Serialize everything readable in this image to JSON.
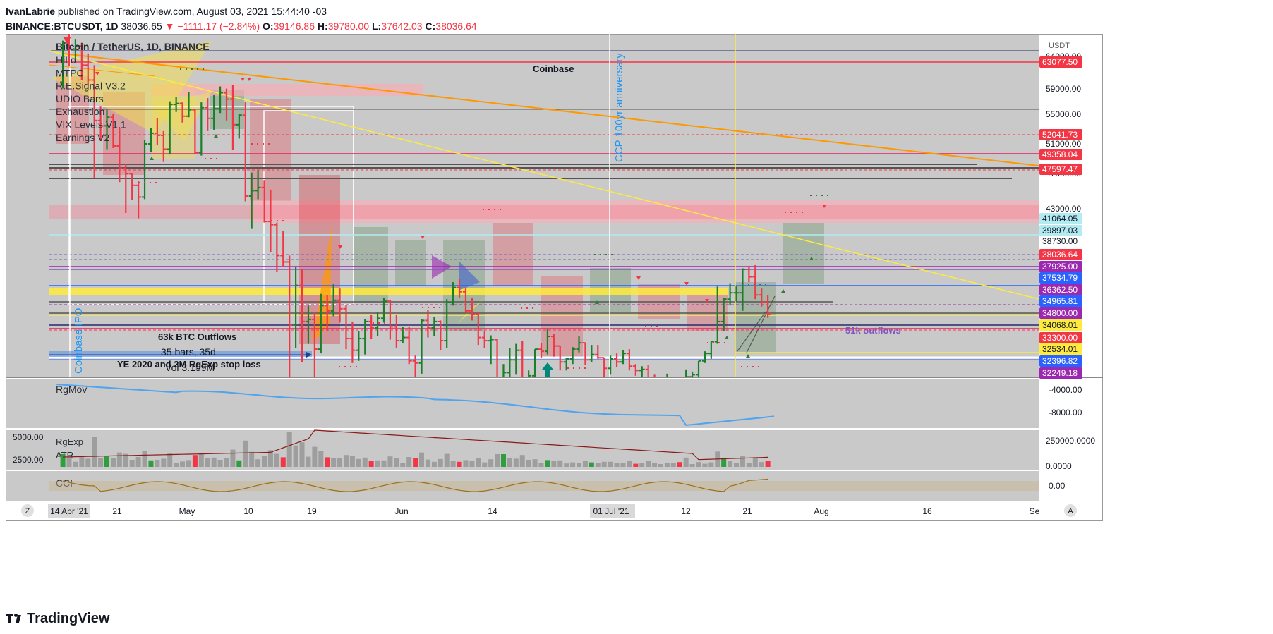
{
  "header": {
    "author": "IvanLabrie",
    "published_text": "published on TradingView.com, August 03, 2021 15:44:40 -03",
    "symbol": "BINANCE:BTCUSDT, 1D",
    "price": "38036.65",
    "change": "−1111.17 (−2.84%)",
    "o_label": "O:",
    "o_value": "39146.86",
    "h_label": "H:",
    "h_value": "39780.00",
    "l_label": "L:",
    "l_value": "37642.03",
    "c_label": "C:",
    "c_value": "38036.64"
  },
  "legend": {
    "title": "Bitcoin / TetherUS, 1D, BINANCE",
    "items": [
      "HiLo",
      "MTPC",
      "R.E.Signal V3.2",
      "UDIO Bars",
      "Exhaustion",
      "VIX Levels V1.1",
      "Earnings V2"
    ]
  },
  "chart_data": {
    "type": "candlestick",
    "currency": "USDT",
    "x_ticks": [
      "14 Apr '21",
      "21",
      "May",
      "10",
      "19",
      "Jun",
      "14",
      "01 Jul '21",
      "12",
      "21",
      "Aug",
      "16",
      "Se"
    ],
    "y_ticks": [
      "64000.00",
      "59000.00",
      "55000.00",
      "51000.00",
      "47000.00",
      "43000.00"
    ],
    "price_levels": [
      {
        "label": "63077.50",
        "color": "#f23645"
      },
      {
        "label": "52041.73",
        "color": "#f23645"
      },
      {
        "label": "49358.04",
        "color": "#f23645"
      },
      {
        "label": "47597.47",
        "color": "#f23645"
      },
      {
        "label": "41064.05",
        "color": "#b2ebf2"
      },
      {
        "label": "39897.03",
        "color": "#b2ebf2"
      },
      {
        "label": "38730.00",
        "color": "#ffffff"
      },
      {
        "label": "38036.64",
        "color": "#f23645"
      },
      {
        "label": "37925.00",
        "color": "#9c27b0"
      },
      {
        "label": "37534.79",
        "color": "#2962ff"
      },
      {
        "label": "36362.50",
        "color": "#9c27b0"
      },
      {
        "label": "34965.81",
        "color": "#2962ff"
      },
      {
        "label": "34800.00",
        "color": "#9c27b0"
      },
      {
        "label": "34068.01",
        "color": "#ffeb3b"
      },
      {
        "label": "33300.00",
        "color": "#f23645"
      },
      {
        "label": "32534.01",
        "color": "#ffeb3b"
      },
      {
        "label": "32396.82",
        "color": "#2962ff"
      },
      {
        "label": "32249.18",
        "color": "#9c27b0"
      }
    ],
    "annotations": [
      "Coinbase",
      "CCP 100yr anniversary",
      "Coinbase IPO",
      "63k BTC Outflows",
      "35 bars, 35d",
      "Vol 3.159M",
      "YE 2020 and 2M RgExp stop loss",
      "51k outflows"
    ],
    "candles": [
      {
        "date": "2021-04-13",
        "o": 59800,
        "h": 63700,
        "l": 59200,
        "c": 63500
      },
      {
        "date": "2021-04-14",
        "o": 63500,
        "h": 64854,
        "l": 61300,
        "c": 62900
      },
      {
        "date": "2021-04-15",
        "o": 62900,
        "h": 63800,
        "l": 62000,
        "c": 63200
      },
      {
        "date": "2021-04-16",
        "o": 63200,
        "h": 63500,
        "l": 60000,
        "c": 61400
      },
      {
        "date": "2021-04-17",
        "o": 61400,
        "h": 62500,
        "l": 59600,
        "c": 60000
      },
      {
        "date": "2021-04-18",
        "o": 60000,
        "h": 61400,
        "l": 50800,
        "c": 56200
      },
      {
        "date": "2021-04-19",
        "o": 56200,
        "h": 57500,
        "l": 54300,
        "c": 55700
      },
      {
        "date": "2021-04-20",
        "o": 55700,
        "h": 57200,
        "l": 53500,
        "c": 56500
      },
      {
        "date": "2021-04-21",
        "o": 56500,
        "h": 56800,
        "l": 53600,
        "c": 53800
      },
      {
        "date": "2021-04-22",
        "o": 53800,
        "h": 55500,
        "l": 50400,
        "c": 51700
      },
      {
        "date": "2021-04-23",
        "o": 51700,
        "h": 52100,
        "l": 47500,
        "c": 51200
      },
      {
        "date": "2021-04-24",
        "o": 51200,
        "h": 51200,
        "l": 48700,
        "c": 50100
      },
      {
        "date": "2021-04-25",
        "o": 50100,
        "h": 50500,
        "l": 47000,
        "c": 49000
      },
      {
        "date": "2021-04-26",
        "o": 49000,
        "h": 54400,
        "l": 48800,
        "c": 54000
      },
      {
        "date": "2021-04-27",
        "o": 54000,
        "h": 55500,
        "l": 53200,
        "c": 55000
      },
      {
        "date": "2021-04-28",
        "o": 55000,
        "h": 56400,
        "l": 53900,
        "c": 54800
      },
      {
        "date": "2021-04-29",
        "o": 54800,
        "h": 55200,
        "l": 52300,
        "c": 53500
      },
      {
        "date": "2021-04-30",
        "o": 53500,
        "h": 58000,
        "l": 53000,
        "c": 57700
      },
      {
        "date": "2021-05-01",
        "o": 57700,
        "h": 58400,
        "l": 57000,
        "c": 57800
      },
      {
        "date": "2021-05-02",
        "o": 57800,
        "h": 57900,
        "l": 56000,
        "c": 56600
      },
      {
        "date": "2021-05-03",
        "o": 56600,
        "h": 58900,
        "l": 56500,
        "c": 57200
      },
      {
        "date": "2021-05-04",
        "o": 57200,
        "h": 57200,
        "l": 53000,
        "c": 53200
      },
      {
        "date": "2021-05-05",
        "o": 53200,
        "h": 57900,
        "l": 52900,
        "c": 57400
      },
      {
        "date": "2021-05-06",
        "o": 57400,
        "h": 58300,
        "l": 55200,
        "c": 56400
      },
      {
        "date": "2021-05-07",
        "o": 56400,
        "h": 58600,
        "l": 55300,
        "c": 57300
      },
      {
        "date": "2021-05-08",
        "o": 57300,
        "h": 59400,
        "l": 56900,
        "c": 58800
      },
      {
        "date": "2021-05-09",
        "o": 58800,
        "h": 59200,
        "l": 56200,
        "c": 58200
      },
      {
        "date": "2021-05-10",
        "o": 58200,
        "h": 59500,
        "l": 53400,
        "c": 55800
      },
      {
        "date": "2021-05-11",
        "o": 55800,
        "h": 56800,
        "l": 54500,
        "c": 56700
      },
      {
        "date": "2021-05-12",
        "o": 56700,
        "h": 57900,
        "l": 48600,
        "c": 49100
      },
      {
        "date": "2021-05-13",
        "o": 49100,
        "h": 51300,
        "l": 46000,
        "c": 49600
      },
      {
        "date": "2021-05-14",
        "o": 49600,
        "h": 51500,
        "l": 48800,
        "c": 49900
      },
      {
        "date": "2021-05-15",
        "o": 49900,
        "h": 50600,
        "l": 46600,
        "c": 46700
      },
      {
        "date": "2021-05-16",
        "o": 46700,
        "h": 49700,
        "l": 43800,
        "c": 46400
      },
      {
        "date": "2021-05-17",
        "o": 46400,
        "h": 46600,
        "l": 42000,
        "c": 43500
      },
      {
        "date": "2021-05-18",
        "o": 43500,
        "h": 45800,
        "l": 42400,
        "c": 42900
      },
      {
        "date": "2021-05-19",
        "o": 42900,
        "h": 43500,
        "l": 30000,
        "c": 37000
      },
      {
        "date": "2021-05-20",
        "o": 37000,
        "h": 42400,
        "l": 34800,
        "c": 40700
      },
      {
        "date": "2021-05-21",
        "o": 40700,
        "h": 42200,
        "l": 33500,
        "c": 37300
      },
      {
        "date": "2021-05-22",
        "o": 37300,
        "h": 38800,
        "l": 35200,
        "c": 37500
      },
      {
        "date": "2021-05-23",
        "o": 37500,
        "h": 38200,
        "l": 31100,
        "c": 34700
      },
      {
        "date": "2021-05-24",
        "o": 34700,
        "h": 39900,
        "l": 34300,
        "c": 38800
      },
      {
        "date": "2021-05-25",
        "o": 38800,
        "h": 39800,
        "l": 36400,
        "c": 38300
      },
      {
        "date": "2021-05-26",
        "o": 38300,
        "h": 40800,
        "l": 37800,
        "c": 39300
      },
      {
        "date": "2021-05-27",
        "o": 39300,
        "h": 40400,
        "l": 37200,
        "c": 38500
      },
      {
        "date": "2021-05-28",
        "o": 38500,
        "h": 38900,
        "l": 34700,
        "c": 35700
      },
      {
        "date": "2021-05-29",
        "o": 35700,
        "h": 37300,
        "l": 33400,
        "c": 34600
      },
      {
        "date": "2021-05-30",
        "o": 34600,
        "h": 36400,
        "l": 33600,
        "c": 35700
      },
      {
        "date": "2021-05-31",
        "o": 35700,
        "h": 37500,
        "l": 34200,
        "c": 37300
      },
      {
        "date": "2021-06-01",
        "o": 37300,
        "h": 37900,
        "l": 35700,
        "c": 36700
      },
      {
        "date": "2021-06-02",
        "o": 36700,
        "h": 38200,
        "l": 35900,
        "c": 37600
      },
      {
        "date": "2021-06-03",
        "o": 37600,
        "h": 39500,
        "l": 37200,
        "c": 39200
      },
      {
        "date": "2021-06-04",
        "o": 39200,
        "h": 39300,
        "l": 35600,
        "c": 36800
      },
      {
        "date": "2021-06-05",
        "o": 36800,
        "h": 37900,
        "l": 34800,
        "c": 35500
      },
      {
        "date": "2021-06-06",
        "o": 35500,
        "h": 36800,
        "l": 35300,
        "c": 35800
      },
      {
        "date": "2021-06-07",
        "o": 35800,
        "h": 36800,
        "l": 33300,
        "c": 33600
      },
      {
        "date": "2021-06-08",
        "o": 33600,
        "h": 34100,
        "l": 31000,
        "c": 33400
      },
      {
        "date": "2021-06-09",
        "o": 33400,
        "h": 37500,
        "l": 32400,
        "c": 37400
      },
      {
        "date": "2021-06-10",
        "o": 37400,
        "h": 38400,
        "l": 35800,
        "c": 36700
      },
      {
        "date": "2021-06-11",
        "o": 36700,
        "h": 37700,
        "l": 35900,
        "c": 37300
      },
      {
        "date": "2021-06-12",
        "o": 37300,
        "h": 37400,
        "l": 34600,
        "c": 35500
      },
      {
        "date": "2021-06-13",
        "o": 35500,
        "h": 39400,
        "l": 34800,
        "c": 39100
      },
      {
        "date": "2021-06-14",
        "o": 39100,
        "h": 41000,
        "l": 38800,
        "c": 40500
      },
      {
        "date": "2021-06-15",
        "o": 40500,
        "h": 41300,
        "l": 39500,
        "c": 40100
      },
      {
        "date": "2021-06-16",
        "o": 40100,
        "h": 40500,
        "l": 38100,
        "c": 38300
      },
      {
        "date": "2021-06-17",
        "o": 38300,
        "h": 39500,
        "l": 37400,
        "c": 38000
      },
      {
        "date": "2021-06-18",
        "o": 38000,
        "h": 38200,
        "l": 35100,
        "c": 35800
      },
      {
        "date": "2021-06-19",
        "o": 35800,
        "h": 36400,
        "l": 34800,
        "c": 35500
      },
      {
        "date": "2021-06-20",
        "o": 35500,
        "h": 36000,
        "l": 33300,
        "c": 35600
      },
      {
        "date": "2021-06-21",
        "o": 35600,
        "h": 35700,
        "l": 31200,
        "c": 31600
      },
      {
        "date": "2021-06-22",
        "o": 31600,
        "h": 33300,
        "l": 28800,
        "c": 32500
      },
      {
        "date": "2021-06-23",
        "o": 32500,
        "h": 34800,
        "l": 31700,
        "c": 33700
      },
      {
        "date": "2021-06-24",
        "o": 33700,
        "h": 35200,
        "l": 32300,
        "c": 34600
      },
      {
        "date": "2021-06-25",
        "o": 34600,
        "h": 35500,
        "l": 31300,
        "c": 31600
      },
      {
        "date": "2021-06-26",
        "o": 31600,
        "h": 32700,
        "l": 30200,
        "c": 32200
      },
      {
        "date": "2021-06-27",
        "o": 32200,
        "h": 34700,
        "l": 32000,
        "c": 34700
      },
      {
        "date": "2021-06-28",
        "o": 34700,
        "h": 35300,
        "l": 33900,
        "c": 34500
      },
      {
        "date": "2021-06-29",
        "o": 34500,
        "h": 36600,
        "l": 34200,
        "c": 35900
      },
      {
        "date": "2021-06-30",
        "o": 35900,
        "h": 36100,
        "l": 34000,
        "c": 35000
      },
      {
        "date": "2021-07-01",
        "o": 35000,
        "h": 35000,
        "l": 32700,
        "c": 33500
      },
      {
        "date": "2021-07-02",
        "o": 33500,
        "h": 33900,
        "l": 32700,
        "c": 33800
      },
      {
        "date": "2021-07-03",
        "o": 33800,
        "h": 34900,
        "l": 33300,
        "c": 34700
      },
      {
        "date": "2021-07-04",
        "o": 34700,
        "h": 35900,
        "l": 34400,
        "c": 35300
      },
      {
        "date": "2021-07-05",
        "o": 35300,
        "h": 35300,
        "l": 33200,
        "c": 33700
      },
      {
        "date": "2021-07-06",
        "o": 33700,
        "h": 35100,
        "l": 33500,
        "c": 34200
      },
      {
        "date": "2021-07-07",
        "o": 34200,
        "h": 35100,
        "l": 33800,
        "c": 33900
      },
      {
        "date": "2021-07-08",
        "o": 33900,
        "h": 33900,
        "l": 32100,
        "c": 32900
      },
      {
        "date": "2021-07-09",
        "o": 32900,
        "h": 34100,
        "l": 32300,
        "c": 33800
      },
      {
        "date": "2021-07-10",
        "o": 33800,
        "h": 34300,
        "l": 33000,
        "c": 33500
      },
      {
        "date": "2021-07-11",
        "o": 33500,
        "h": 34600,
        "l": 33300,
        "c": 34300
      },
      {
        "date": "2021-07-12",
        "o": 34300,
        "h": 34700,
        "l": 32700,
        "c": 33100
      },
      {
        "date": "2021-07-13",
        "o": 33100,
        "h": 33300,
        "l": 32200,
        "c": 32700
      },
      {
        "date": "2021-07-14",
        "o": 32700,
        "h": 33100,
        "l": 31600,
        "c": 32800
      },
      {
        "date": "2021-07-15",
        "o": 32800,
        "h": 33200,
        "l": 31200,
        "c": 31900
      },
      {
        "date": "2021-07-16",
        "o": 31900,
        "h": 32300,
        "l": 31000,
        "c": 31400
      },
      {
        "date": "2021-07-17",
        "o": 31400,
        "h": 31900,
        "l": 31100,
        "c": 31500
      },
      {
        "date": "2021-07-18",
        "o": 31500,
        "h": 32400,
        "l": 31100,
        "c": 31800
      },
      {
        "date": "2021-07-19",
        "o": 31800,
        "h": 31900,
        "l": 30400,
        "c": 30800
      },
      {
        "date": "2021-07-20",
        "o": 30800,
        "h": 31000,
        "l": 29300,
        "c": 29800
      },
      {
        "date": "2021-07-21",
        "o": 29800,
        "h": 32800,
        "l": 29500,
        "c": 32100
      },
      {
        "date": "2021-07-22",
        "o": 32100,
        "h": 32600,
        "l": 31700,
        "c": 32300
      },
      {
        "date": "2021-07-23",
        "o": 32300,
        "h": 33600,
        "l": 31900,
        "c": 33600
      },
      {
        "date": "2021-07-24",
        "o": 33600,
        "h": 34500,
        "l": 33400,
        "c": 34300
      },
      {
        "date": "2021-07-25",
        "o": 34300,
        "h": 35400,
        "l": 33800,
        "c": 35400
      },
      {
        "date": "2021-07-26",
        "o": 35400,
        "h": 40600,
        "l": 35200,
        "c": 37300
      },
      {
        "date": "2021-07-27",
        "o": 37300,
        "h": 39500,
        "l": 36400,
        "c": 39400
      },
      {
        "date": "2021-07-28",
        "o": 39400,
        "h": 40900,
        "l": 38800,
        "c": 40000
      },
      {
        "date": "2021-07-29",
        "o": 40000,
        "h": 40600,
        "l": 39200,
        "c": 40000
      },
      {
        "date": "2021-07-30",
        "o": 40000,
        "h": 42300,
        "l": 38300,
        "c": 42200
      },
      {
        "date": "2021-07-31",
        "o": 42200,
        "h": 42400,
        "l": 41000,
        "c": 41500
      },
      {
        "date": "2021-08-01",
        "o": 41500,
        "h": 42600,
        "l": 39400,
        "c": 39800
      },
      {
        "date": "2021-08-02",
        "o": 39800,
        "h": 40400,
        "l": 38700,
        "c": 39100
      },
      {
        "date": "2021-08-03",
        "o": 39147,
        "h": 39780,
        "l": 37642,
        "c": 38037
      }
    ]
  },
  "panes": {
    "rgmov": {
      "label": "RgMov",
      "ticks": [
        "-4000.00",
        "-8000.00"
      ]
    },
    "rgexp": {
      "label1": "RgExp",
      "label2": "ATR",
      "left_ticks": [
        "5000.00",
        "2500.00"
      ],
      "right_ticks": [
        "250000.0000",
        "0.0000"
      ]
    },
    "cci": {
      "label": "CCI",
      "ticks": [
        "0.00"
      ]
    }
  },
  "buttons": {
    "z_label": "Z",
    "a_label": "A"
  },
  "footer": {
    "logo_text": "TradingView"
  }
}
